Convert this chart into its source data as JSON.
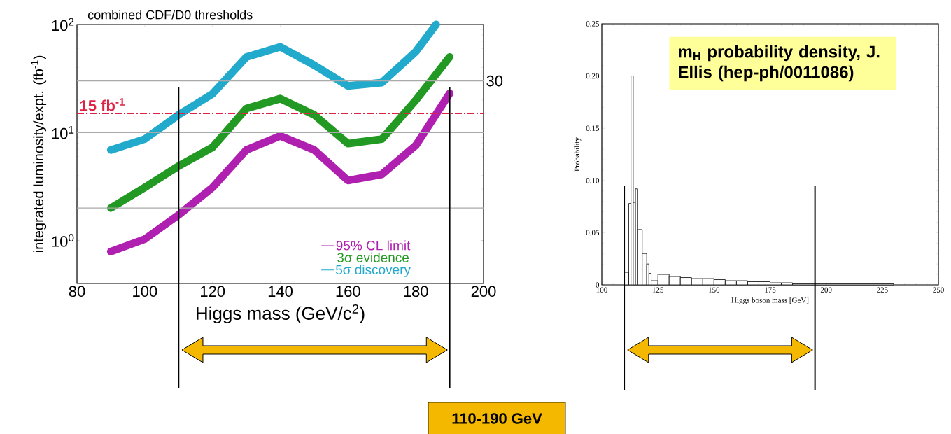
{
  "chart_data": [
    {
      "type": "line",
      "title": "combined CDF/D0 thresholds",
      "xlabel": "Higgs mass (GeV/c$^{2}$)",
      "ylabel": "integrated luminosity/expt. (fb$^{-1}$)",
      "log": "y",
      "marker": "none",
      "legend": "bottom right",
      "xlim": [
        80,
        200
      ],
      "ylim": [
        0.4,
        100
      ],
      "xticks": [
        80,
        100,
        120,
        140,
        160,
        180,
        200
      ],
      "yticks": [
        {
          "value": 1,
          "label": "10$^{0}$"
        },
        {
          "value": 10,
          "label": "10$^{1}$"
        },
        {
          "value": 100,
          "label": "10$^{2}$"
        }
      ],
      "x": [
        90,
        100,
        110,
        120,
        130,
        140,
        150,
        160,
        170,
        180,
        190
      ],
      "series": [
        {
          "name": "95% CL limit",
          "color": "#b020b0",
          "values": [
            0.79,
            1.03,
            1.73,
            3.1,
            6.9,
            9.3,
            6.9,
            3.6,
            4.1,
            7.6,
            23
          ]
        },
        {
          "name": "3σ evidence",
          "color": "#229922",
          "values": [
            2.0,
            3.1,
            4.9,
            7.3,
            16.7,
            20.6,
            14.6,
            7.9,
            8.7,
            19.9,
            50
          ]
        },
        {
          "name": "5σ discovery",
          "color": "#22aacc",
          "x": [
            90,
            100,
            110,
            120,
            130,
            140,
            150,
            160,
            170,
            180,
            186
          ],
          "values": [
            6.9,
            8.7,
            14.6,
            22.8,
            50,
            62,
            42,
            27,
            29,
            56,
            100
          ]
        }
      ],
      "ref_lines": [
        {
          "axis": "y",
          "value": 15,
          "label": "15 fb$^{-1}$",
          "color": "#dd2244",
          "line_style": "dashed"
        },
        {
          "axis": "y",
          "value": 30,
          "label": "30",
          "color": "#aaaaaa"
        },
        {
          "axis": "y",
          "value": 10,
          "color": "#aaaaaa"
        },
        {
          "axis": "y",
          "value": 2,
          "color": "#aaaaaa"
        },
        {
          "axis": "x",
          "value": 110,
          "color": "#000000"
        },
        {
          "axis": "x",
          "value": 190,
          "color": "#000000"
        }
      ],
      "annotations": [
        "110-190 GeV"
      ]
    },
    {
      "type": "histogram",
      "xlabel": "Higgs boson mass [GeV]",
      "ylabel": "Probability",
      "color": "#000000",
      "xlim": [
        100,
        250
      ],
      "ylim": [
        0,
        0.25
      ],
      "xticks": [
        100,
        125,
        150,
        175,
        200,
        225,
        250
      ],
      "yticks": [
        0,
        0.05,
        {
          "value": 0.1,
          "label": "0.10"
        },
        0.15,
        {
          "value": 0.2,
          "label": "0.20"
        },
        0.25
      ],
      "bins": [
        110,
        112,
        113,
        114,
        115,
        116,
        118,
        120,
        121,
        122,
        125,
        130,
        135,
        140,
        145,
        150,
        155,
        160,
        165,
        170,
        175,
        180,
        185,
        200,
        230
      ],
      "values": [
        0.012,
        0.078,
        0.2,
        0.079,
        0.092,
        0.053,
        0.03,
        0.02,
        0.011,
        0.004,
        0.01,
        0.008,
        0.007,
        0.006,
        0.006,
        0.005,
        0.004,
        0.004,
        0.003,
        0.003,
        0.002,
        0.002,
        0.001,
        0.001
      ],
      "ref_lines": [
        {
          "axis": "x",
          "value": 110,
          "color": "#000000"
        },
        {
          "axis": "x",
          "value": 195,
          "color": "#000000"
        }
      ],
      "annotations": [
        "m$_{H}$ probability density, J. Ellis (hep-ph/0011086)"
      ]
    }
  ]
}
